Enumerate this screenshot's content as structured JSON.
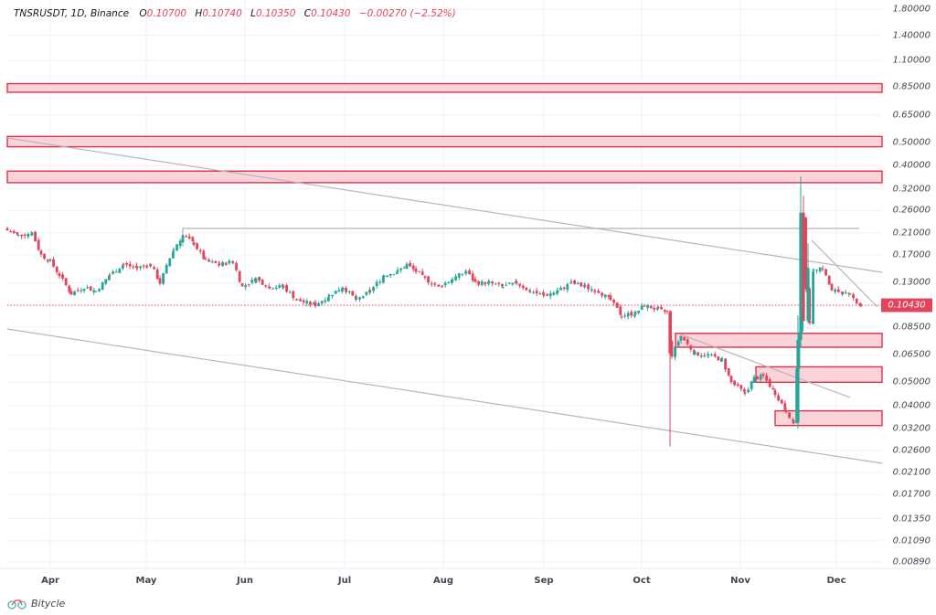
{
  "header": {
    "symbol": "TNSRUSDT, 1D, Binance",
    "ohlc": [
      {
        "label": "O",
        "value": "0.10700"
      },
      {
        "label": "H",
        "value": "0.10740"
      },
      {
        "label": "L",
        "value": "0.10350"
      },
      {
        "label": "C",
        "value": "0.10430"
      }
    ],
    "change": "−0.00270 (−2.52%)"
  },
  "brand": {
    "name": "Bitycle",
    "icon": "bicycle-icon"
  },
  "colors": {
    "up": "#26a69a",
    "down": "#e0455d",
    "zone_fill": "#fbd3d9",
    "zone_border": "#d9324c",
    "trendline": "#b2b5be",
    "grid": "#f0f1f4",
    "price_line": "#e0455d"
  },
  "current_price": "0.10430",
  "chart_data": {
    "type": "candlestick",
    "title": "TNSRUSDT, 1D, Binance",
    "scale": "log",
    "xlabel": "",
    "ylabel": "",
    "x_ticks": [
      "Apr",
      "May",
      "Jun",
      "Jul",
      "Aug",
      "Sep",
      "Oct",
      "Nov",
      "Dec"
    ],
    "y_ticks": [
      "1.80000",
      "1.40000",
      "1.10000",
      "0.85000",
      "0.65000",
      "0.50000",
      "0.40000",
      "0.32000",
      "0.26000",
      "0.21000",
      "0.17000",
      "0.13000",
      "0.08500",
      "0.06500",
      "0.05000",
      "0.04000",
      "0.03200",
      "0.02600",
      "0.02100",
      "0.01700",
      "0.01350",
      "0.01090",
      "0.00890"
    ],
    "ylim": [
      0.0085,
      1.85
    ],
    "last_bar": {
      "open": 0.107,
      "high": 0.1074,
      "low": 0.1035,
      "close": 0.1043,
      "change": -0.0027,
      "change_pct": -2.52
    },
    "approx_closes": [
      {
        "period": "late Mar",
        "price": 0.22
      },
      {
        "period": "early Apr",
        "price": 0.12
      },
      {
        "period": "mid Apr",
        "price": 0.15
      },
      {
        "period": "early May",
        "price": 0.13
      },
      {
        "period": "mid May",
        "price": 0.2
      },
      {
        "period": "late May",
        "price": 0.15
      },
      {
        "period": "Jun",
        "price": 0.12
      },
      {
        "period": "late Jun",
        "price": 0.105
      },
      {
        "period": "mid Jul",
        "price": 0.15
      },
      {
        "period": "Aug",
        "price": 0.13
      },
      {
        "period": "Sep",
        "price": 0.12
      },
      {
        "period": "late Sep",
        "price": 0.095
      },
      {
        "period": "early Oct",
        "price": 0.1
      },
      {
        "period": "Oct crash",
        "price": 0.065,
        "wick_low": 0.027
      },
      {
        "period": "late Oct",
        "price": 0.045
      },
      {
        "period": "mid Nov",
        "price": 0.035
      },
      {
        "period": "Nov pump",
        "price": 0.25,
        "wick_high": 0.36
      },
      {
        "period": "late Nov",
        "price": 0.14
      },
      {
        "period": "Dec",
        "price": 0.1043
      }
    ],
    "zones": [
      {
        "name": "resistance-zone-1",
        "low": 0.81,
        "high": 0.88,
        "x_from": "start",
        "x_to": "end"
      },
      {
        "name": "resistance-zone-2",
        "low": 0.48,
        "high": 0.53,
        "x_from": "start",
        "x_to": "end"
      },
      {
        "name": "resistance-zone-3",
        "low": 0.34,
        "high": 0.38,
        "x_from": "start",
        "x_to": "end"
      },
      {
        "name": "support-zone-1",
        "low": 0.07,
        "high": 0.08,
        "x_from": "mid Oct",
        "x_to": "end"
      },
      {
        "name": "support-zone-2",
        "low": 0.05,
        "high": 0.058,
        "x_from": "early Nov",
        "x_to": "end"
      },
      {
        "name": "support-zone-3",
        "low": 0.033,
        "high": 0.038,
        "x_from": "mid Nov",
        "x_to": "end"
      }
    ],
    "trendlines": [
      {
        "name": "upper-channel-line",
        "from": [
          0.52,
          "late Mar"
        ],
        "to": [
          0.145,
          "Dec"
        ]
      },
      {
        "name": "lower-channel-line",
        "from": [
          0.085,
          "late Mar"
        ],
        "to": [
          0.024,
          "Dec"
        ]
      },
      {
        "name": "horizontal-high-line",
        "price": 0.215,
        "from": "mid May",
        "to": "Dec"
      },
      {
        "name": "oct-nov-descending-line",
        "from": [
          0.08,
          "mid Oct"
        ],
        "to": [
          0.041,
          "early Dec"
        ]
      },
      {
        "name": "nov-dec-descending-line",
        "from": [
          0.19,
          "late Nov"
        ],
        "to": [
          0.1,
          "Dec"
        ]
      }
    ],
    "grid": true,
    "legend": "top-left"
  }
}
